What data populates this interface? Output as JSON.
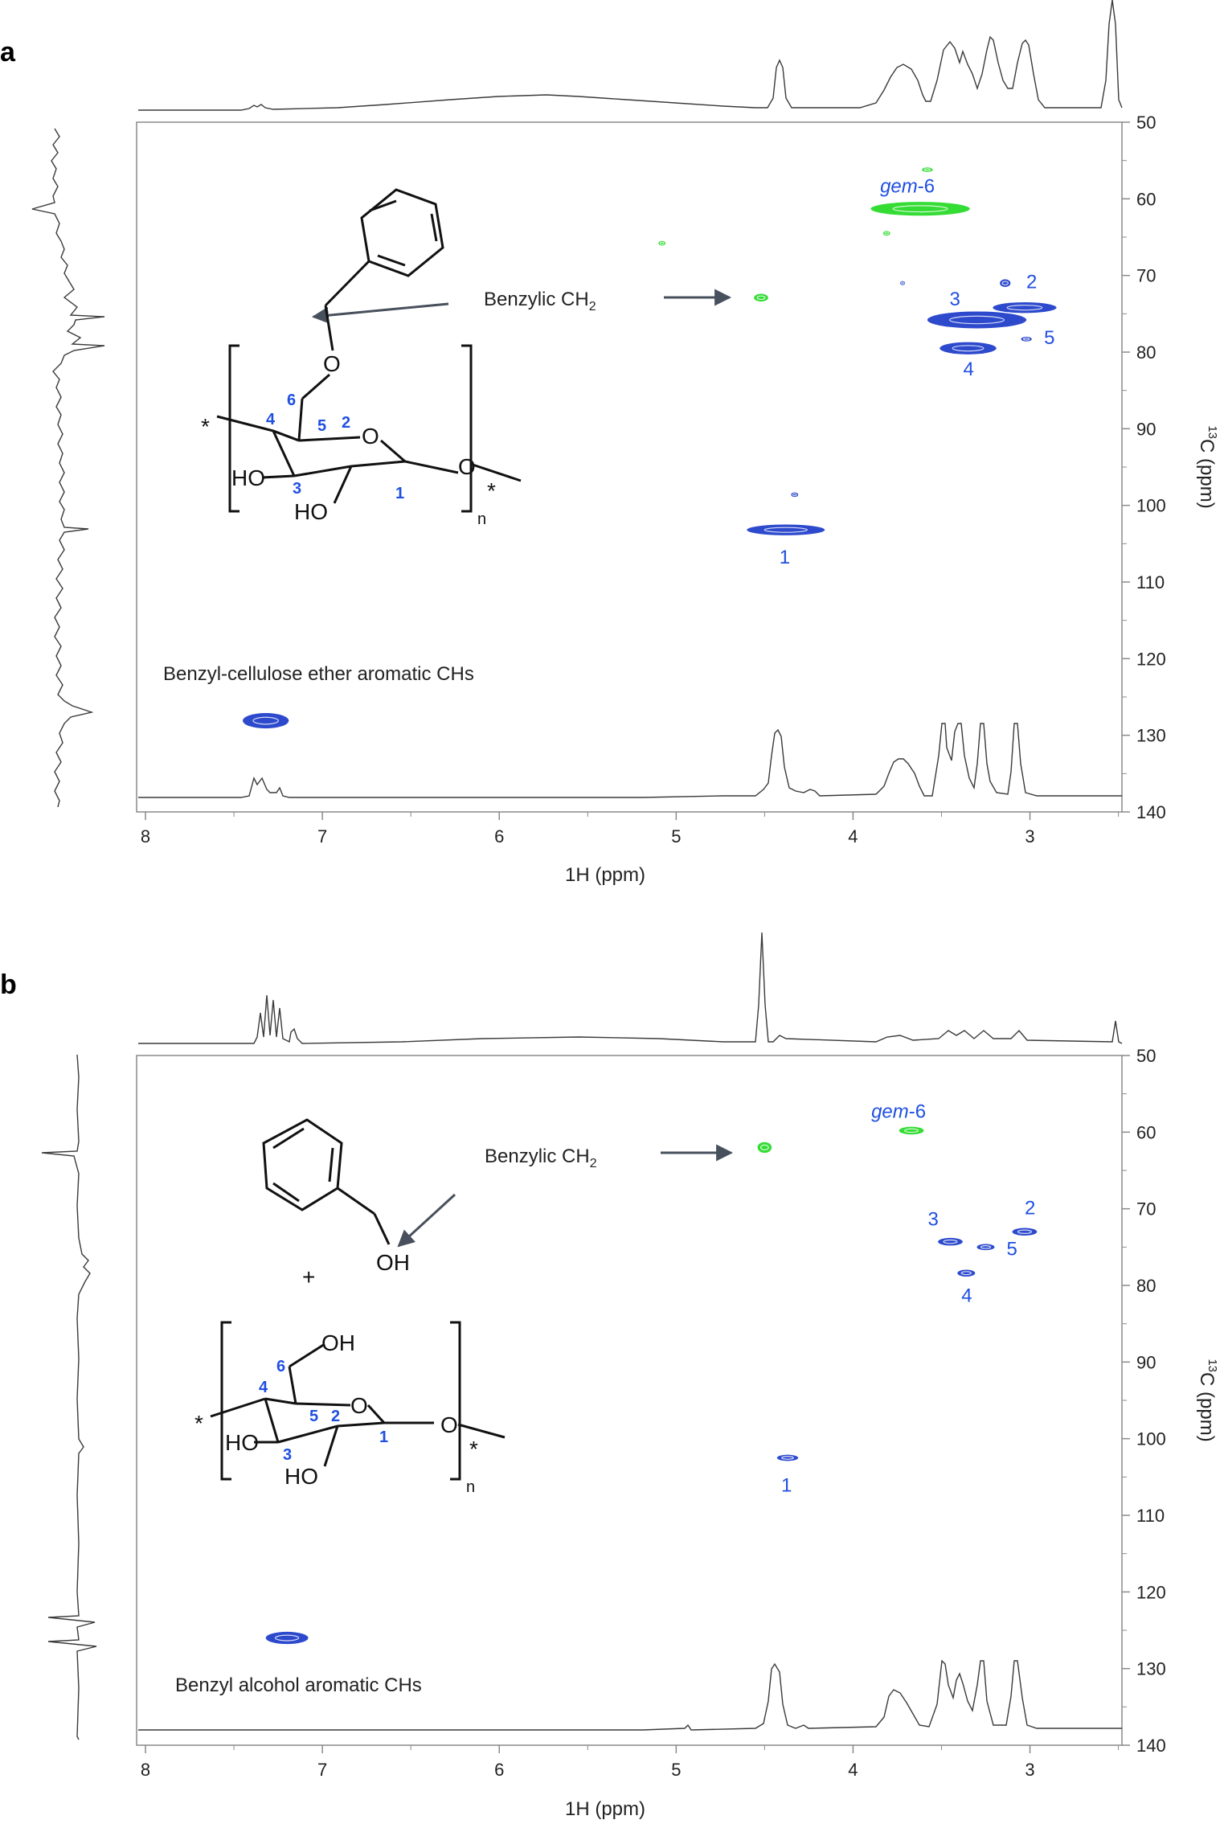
{
  "colors": {
    "axis": "#8a8a8a",
    "trace": "#3a3a3a",
    "peak_blue": "#1636c8",
    "peak_green": "#1ed81e",
    "label_blue": "#1f4fe0",
    "arrow": "#47505c",
    "structure": "#111111"
  },
  "icons": {
    "arrow": "arrow-right-icon"
  },
  "chart_data": [
    {
      "type": "heatmap",
      "panel": "a",
      "xlabel": "1H (ppm)",
      "ylabel_sup": "13",
      "ylabel": "C (ppm)",
      "xlim": [
        8.05,
        2.48
      ],
      "ylim": [
        50,
        140
      ],
      "xticks": [
        8,
        7,
        6,
        5,
        4,
        3
      ],
      "yticks": [
        50,
        60,
        70,
        80,
        90,
        100,
        110,
        120,
        130,
        140
      ],
      "structure_label": "Benzylic CH",
      "structure_label_sub": "2",
      "region_label": "Benzyl-cellulose ether aromatic CHs",
      "ring_labels": [
        "6",
        "4",
        "5",
        "2",
        "3",
        "1"
      ],
      "structure_text": {
        "O1": "O",
        "O2": "O",
        "O3": "O",
        "HO1": "HO",
        "HO2": "HO",
        "n": "n",
        "star1": "*",
        "star2": "*"
      },
      "peaks": [
        {
          "label": "gem-6",
          "x": 3.62,
          "y": 61.3,
          "color": "green",
          "wx": 0.28,
          "wy": 0.9
        },
        {
          "label": "",
          "x": 3.58,
          "y": 56.2,
          "color": "green",
          "wx": 0.03,
          "wy": 0.3
        },
        {
          "label": "",
          "x": 5.08,
          "y": 65.8,
          "color": "green",
          "wx": 0.02,
          "wy": 0.3
        },
        {
          "label": "",
          "x": 3.81,
          "y": 64.5,
          "color": "green",
          "wx": 0.02,
          "wy": 0.3
        },
        {
          "label": "",
          "x": 4.52,
          "y": 72.9,
          "color": "green",
          "wx": 0.04,
          "wy": 0.5
        },
        {
          "label": "3",
          "x": 3.3,
          "y": 75.8,
          "color": "blue",
          "wx": 0.28,
          "wy": 1.1
        },
        {
          "label": "2",
          "x": 3.03,
          "y": 74.2,
          "color": "blue",
          "wx": 0.18,
          "wy": 0.7
        },
        {
          "label": "",
          "x": 3.14,
          "y": 71.0,
          "color": "blue",
          "wx": 0.03,
          "wy": 0.5
        },
        {
          "label": "",
          "x": 3.72,
          "y": 71.0,
          "color": "blue",
          "wx": 0.01,
          "wy": 0.2
        },
        {
          "label": "4",
          "x": 3.35,
          "y": 79.5,
          "color": "blue",
          "wx": 0.16,
          "wy": 0.8
        },
        {
          "label": "5",
          "x": 3.02,
          "y": 78.3,
          "color": "blue",
          "wx": 0.03,
          "wy": 0.3
        },
        {
          "label": "1",
          "x": 4.38,
          "y": 103.2,
          "color": "blue",
          "wx": 0.22,
          "wy": 0.7
        },
        {
          "label": "",
          "x": 4.33,
          "y": 98.6,
          "color": "blue",
          "wx": 0.02,
          "wy": 0.3
        },
        {
          "label": "",
          "x": 7.32,
          "y": 128.1,
          "color": "blue",
          "wx": 0.13,
          "wy": 1.0
        }
      ]
    },
    {
      "type": "heatmap",
      "panel": "b",
      "xlabel": "1H (ppm)",
      "ylabel_sup": "13",
      "ylabel": "C (ppm)",
      "xlim": [
        8.05,
        2.48
      ],
      "ylim": [
        50,
        140
      ],
      "xticks": [
        8,
        7,
        6,
        5,
        4,
        3
      ],
      "yticks": [
        50,
        60,
        70,
        80,
        90,
        100,
        110,
        120,
        130,
        140
      ],
      "structure_label": "Benzylic CH",
      "structure_label_sub": "2",
      "region_label": "Benzyl alcohol aromatic CHs",
      "ring_labels": [
        "6",
        "4",
        "5",
        "2",
        "3",
        "1"
      ],
      "structure_text": {
        "OH_top": "OH",
        "plus": "+",
        "OH_c6": "OH",
        "O1": "O",
        "O2": "O",
        "HO1": "HO",
        "HO2": "HO",
        "n": "n",
        "star1": "*",
        "star2": "*"
      },
      "peaks": [
        {
          "label": "gem-6",
          "x": 3.67,
          "y": 59.8,
          "color": "green",
          "wx": 0.07,
          "wy": 0.5
        },
        {
          "label": "",
          "x": 4.5,
          "y": 62.0,
          "color": "green",
          "wx": 0.04,
          "wy": 0.7
        },
        {
          "label": "3",
          "x": 3.45,
          "y": 74.3,
          "color": "blue",
          "wx": 0.07,
          "wy": 0.5
        },
        {
          "label": "2",
          "x": 3.03,
          "y": 73.0,
          "color": "blue",
          "wx": 0.07,
          "wy": 0.5
        },
        {
          "label": "5",
          "x": 3.25,
          "y": 75.0,
          "color": "blue",
          "wx": 0.05,
          "wy": 0.4
        },
        {
          "label": "4",
          "x": 3.36,
          "y": 78.4,
          "color": "blue",
          "wx": 0.05,
          "wy": 0.45
        },
        {
          "label": "1",
          "x": 4.37,
          "y": 102.5,
          "color": "blue",
          "wx": 0.06,
          "wy": 0.4
        },
        {
          "label": "",
          "x": 7.2,
          "y": 126.0,
          "color": "blue",
          "wx": 0.12,
          "wy": 0.8
        }
      ]
    }
  ]
}
